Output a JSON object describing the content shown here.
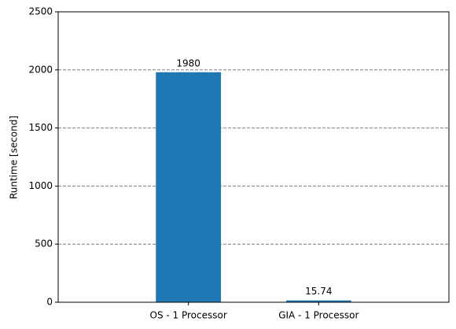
{
  "chart_data": {
    "type": "bar",
    "y_label": "Runtime [second]",
    "categories": [
      "OS - 1 Processor",
      "GIA - 1 Processor"
    ],
    "values": [
      1980,
      15.74
    ],
    "color": "#1f77b4",
    "ylim": [
      0,
      2500
    ],
    "yticks": [
      0,
      500,
      1000,
      1500,
      2000,
      2500
    ],
    "grid": true
  }
}
